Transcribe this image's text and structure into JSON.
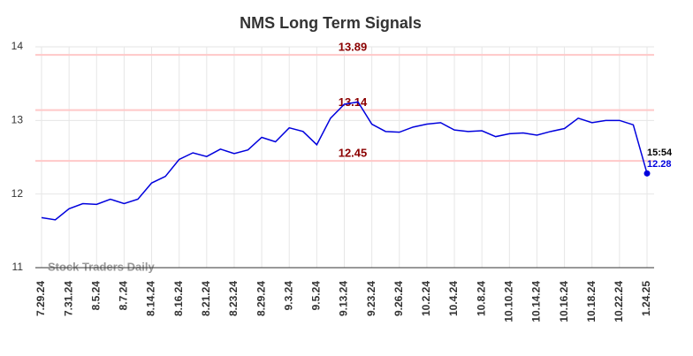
{
  "chart_data": {
    "type": "line",
    "title": "NMS Long Term Signals",
    "categories": [
      "7.29.24",
      null,
      "7.31.24",
      null,
      "8.5.24",
      null,
      "8.7.24",
      null,
      "8.14.24",
      null,
      "8.16.24",
      null,
      "8.21.24",
      null,
      "8.23.24",
      null,
      "8.29.24",
      null,
      "9.3.24",
      null,
      "9.5.24",
      null,
      "9.13.24",
      null,
      "9.23.24",
      null,
      "9.26.24",
      null,
      "10.2.24",
      null,
      "10.4.24",
      null,
      "10.8.24",
      null,
      "10.10.24",
      null,
      "10.14.24",
      null,
      "10.16.24",
      null,
      "10.18.24",
      null,
      "10.22.24",
      null,
      "1.24.25"
    ],
    "series": [
      {
        "color": "#0000dd",
        "values": [
          11.68,
          11.65,
          11.8,
          11.87,
          11.86,
          11.93,
          11.87,
          11.93,
          12.15,
          12.24,
          12.47,
          12.56,
          12.51,
          12.61,
          12.55,
          12.6,
          12.77,
          12.71,
          12.9,
          12.85,
          12.67,
          13.03,
          13.22,
          13.25,
          12.95,
          12.85,
          12.84,
          12.91,
          12.95,
          12.97,
          12.87,
          12.85,
          12.86,
          12.78,
          12.82,
          12.83,
          12.8,
          12.85,
          12.89,
          13.03,
          12.97,
          13.0,
          13.0,
          12.94,
          12.28
        ]
      }
    ],
    "ylim": [
      11,
      14
    ],
    "yticks": [
      11,
      12,
      13,
      14
    ],
    "grid": true,
    "reference_lines": [
      13.89,
      13.14,
      12.45
    ],
    "reference_line_color": "#ffc8c8",
    "reference_label_color": "#8b0000",
    "last_time": "15:54",
    "watermark": "Stock Traders Daily"
  }
}
